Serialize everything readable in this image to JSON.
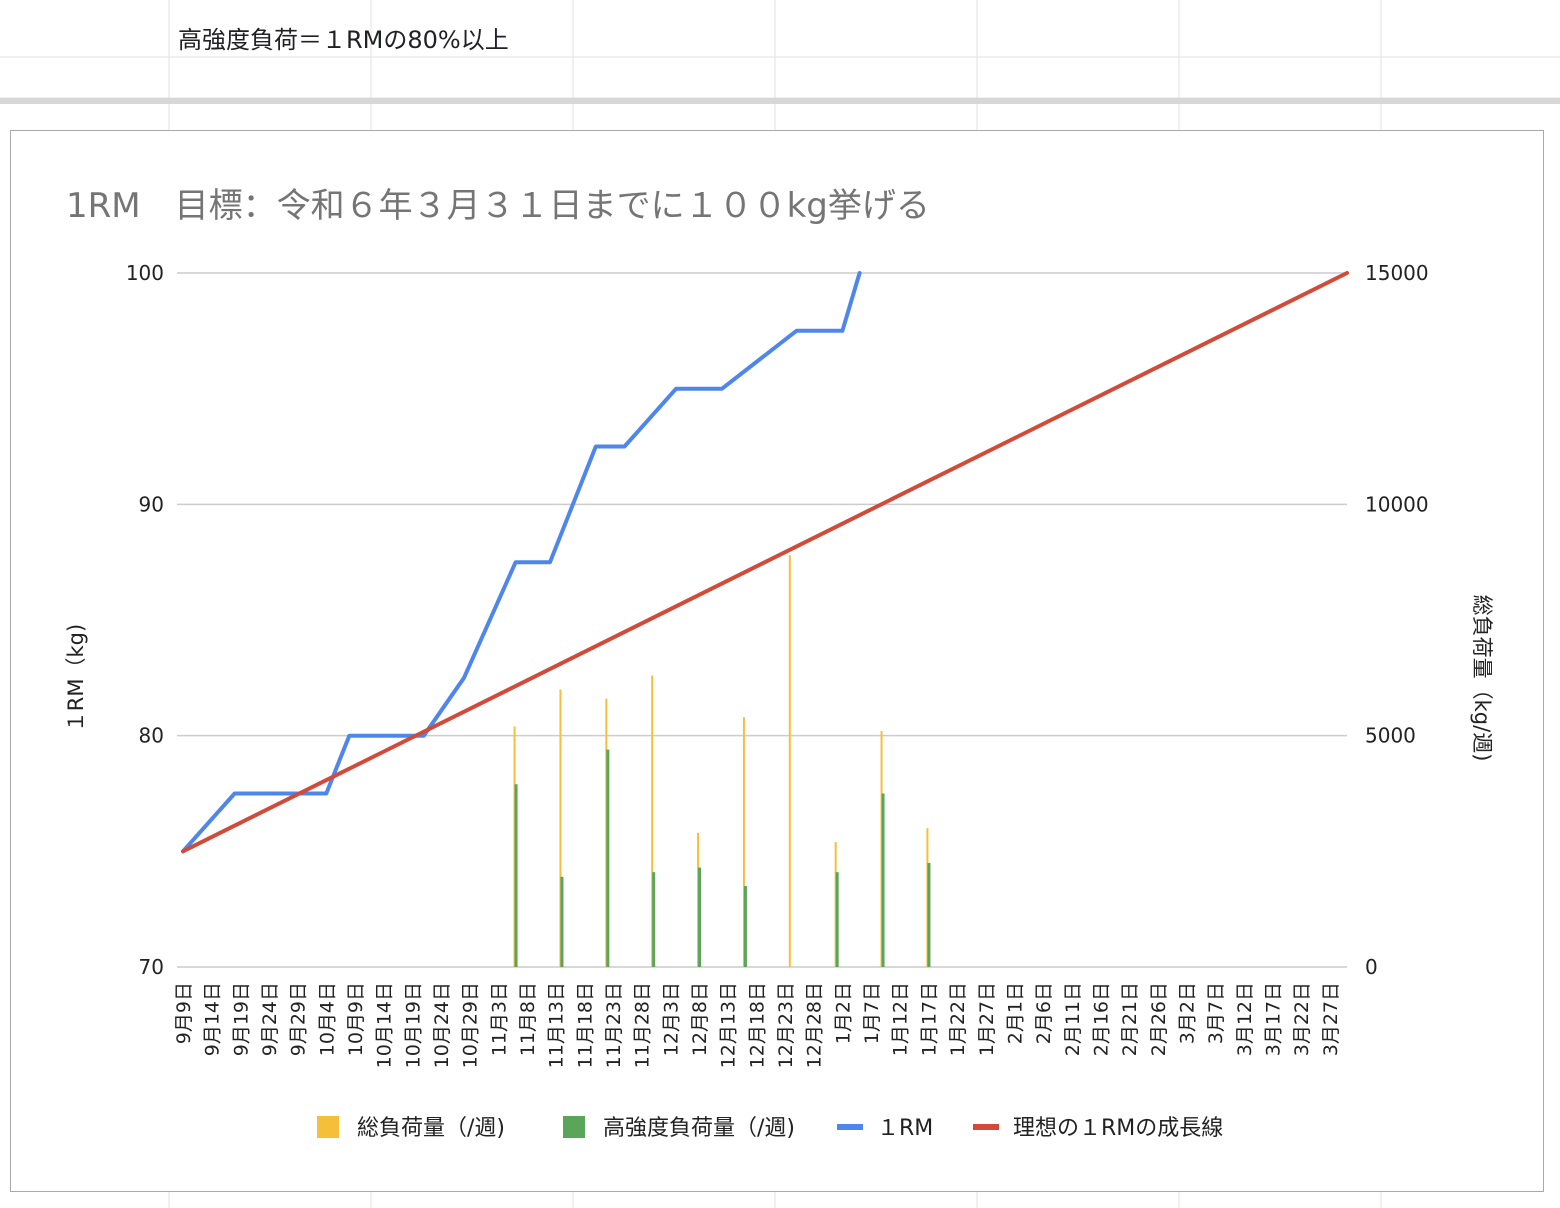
{
  "sheet": {
    "note_cell": "高強度負荷＝１RMの80%以上"
  },
  "chart_data": {
    "type": "combo",
    "title": "1RM　目標：令和６年３月３１日までに１００kg挙げる",
    "left_axis": {
      "label": "１RM（kg)",
      "ticks": [
        "100",
        "90",
        "80",
        "70"
      ],
      "range": [
        70,
        100
      ]
    },
    "right_axis": {
      "label": "総負荷量（kg/週)",
      "ticks": [
        "15000",
        "10000",
        "5000",
        "0"
      ],
      "range": [
        0,
        15000
      ]
    },
    "categories": [
      "9月9日",
      "9月14日",
      "9月19日",
      "9月24日",
      "9月29日",
      "10月4日",
      "10月9日",
      "10月14日",
      "10月19日",
      "10月24日",
      "10月29日",
      "11月3日",
      "11月8日",
      "11月13日",
      "11月18日",
      "11月23日",
      "11月28日",
      "12月3日",
      "12月8日",
      "12月13日",
      "12月18日",
      "12月23日",
      "12月28日",
      "1月2日",
      "1月7日",
      "1月12日",
      "1月17日",
      "1月22日",
      "1月27日",
      "2月1日",
      "2月6日",
      "2月11日",
      "2月16日",
      "2月21日",
      "2月26日",
      "3月2日",
      "3月7日",
      "3月12日",
      "3月17日",
      "3月22日",
      "3月27日"
    ],
    "x_count": 204,
    "bar_series": [
      {
        "name": "総負荷量（/週)",
        "color": "#f6bf3a",
        "axis": "right",
        "points": [
          [
            58,
            5200
          ],
          [
            66,
            6000
          ],
          [
            74,
            5800
          ],
          [
            82,
            6300
          ],
          [
            90,
            2900
          ],
          [
            98,
            5400
          ],
          [
            106,
            8900
          ],
          [
            114,
            2700
          ],
          [
            122,
            5100
          ],
          [
            130,
            3000
          ]
        ]
      },
      {
        "name": "高強度負荷量（/週)",
        "color": "#5aa55a",
        "axis": "right",
        "points": [
          [
            58,
            3950
          ],
          [
            66,
            1950
          ],
          [
            74,
            4700
          ],
          [
            82,
            2050
          ],
          [
            90,
            2150
          ],
          [
            98,
            1750
          ],
          [
            114,
            2050
          ],
          [
            122,
            3750
          ],
          [
            130,
            2250
          ]
        ]
      }
    ],
    "line_series": [
      {
        "name": "１RM",
        "color": "#4f86ec",
        "axis": "left",
        "points": [
          [
            0,
            75
          ],
          [
            9,
            77.5
          ],
          [
            25,
            77.5
          ],
          [
            29,
            80
          ],
          [
            42,
            80
          ],
          [
            49,
            82.5
          ],
          [
            58,
            87.5
          ],
          [
            64,
            87.5
          ],
          [
            72,
            92.5
          ],
          [
            77,
            92.5
          ],
          [
            86,
            95
          ],
          [
            94,
            95
          ],
          [
            107,
            97.5
          ],
          [
            115,
            97.5
          ],
          [
            118,
            100
          ]
        ]
      },
      {
        "name": "理想の１RMの成長線",
        "color": "#d24b3a",
        "axis": "left",
        "points": [
          [
            0,
            75
          ],
          [
            203,
            100
          ]
        ]
      }
    ],
    "legend": "bottom",
    "grid": true
  }
}
